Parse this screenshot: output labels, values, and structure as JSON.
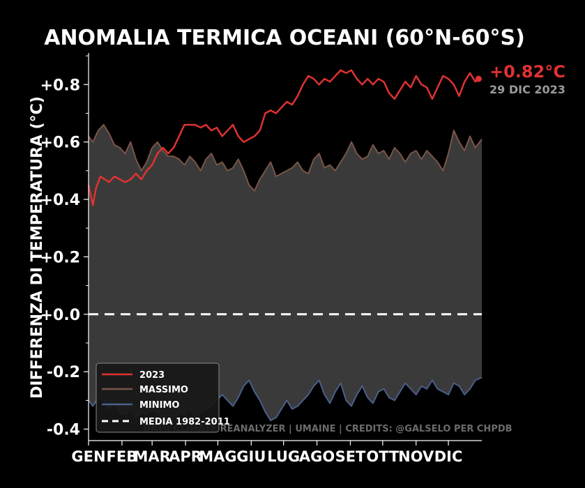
{
  "chart_data": {
    "type": "line",
    "title": "ANOMALIA TERMICA OCEANI (60°N-60°S)",
    "ylabel": "DIFFERENZA DI TEMPERATURA (°C)",
    "xlabel": "",
    "ylim": [
      -0.44,
      0.91
    ],
    "y_ticks": [
      0.8,
      0.6,
      0.4,
      0.2,
      0.0,
      -0.2,
      -0.4
    ],
    "y_tick_labels": [
      "+0.8",
      "+0.6",
      "+0.4",
      "+0.2",
      "+0.0",
      "-0.2",
      "-0.4"
    ],
    "month_labels": [
      "GEN",
      "FEB",
      "MAR",
      "APR",
      "MAG",
      "GIU",
      "LUG",
      "AGO",
      "SET",
      "OTT",
      "NOV",
      "DIC"
    ],
    "month_start_days": [
      1,
      32,
      60,
      91,
      121,
      152,
      182,
      213,
      244,
      274,
      305,
      335
    ],
    "x_range_days": [
      1,
      366
    ],
    "reference_value": 0.0,
    "latest": {
      "value_label": "+0.82°C",
      "date_label": "29 DIC 2023",
      "day": 363,
      "value": 0.82
    },
    "credits": "DATI: CLIMATE REANALYZER | UMAINE | CREDITS: @GALSELO PER CHPDB",
    "legend": {
      "position": "lower-left",
      "entries": [
        "2023",
        "MASSIMO",
        "MINIMO",
        "MEDIA 1982-2011"
      ]
    },
    "colors": {
      "y2023": "#e03232",
      "max": "#7a5548",
      "min": "#4a5f8c",
      "band": "#3a3a3a",
      "ref": "#ffffff",
      "bg": "#000000"
    },
    "series": [
      {
        "name": "2023",
        "x": [
          1,
          5,
          8,
          12,
          16,
          20,
          25,
          30,
          35,
          40,
          45,
          50,
          55,
          60,
          65,
          70,
          75,
          80,
          85,
          90,
          95,
          100,
          105,
          110,
          115,
          120,
          125,
          130,
          135,
          140,
          145,
          150,
          155,
          160,
          165,
          170,
          175,
          180,
          185,
          190,
          195,
          200,
          205,
          210,
          215,
          220,
          225,
          230,
          235,
          240,
          245,
          250,
          255,
          260,
          265,
          270,
          275,
          280,
          285,
          290,
          295,
          300,
          305,
          310,
          315,
          320,
          325,
          330,
          335,
          340,
          345,
          350,
          355,
          360,
          363
        ],
        "values": [
          0.45,
          0.38,
          0.44,
          0.48,
          0.47,
          0.46,
          0.48,
          0.47,
          0.46,
          0.47,
          0.49,
          0.47,
          0.5,
          0.52,
          0.56,
          0.58,
          0.56,
          0.58,
          0.62,
          0.66,
          0.66,
          0.66,
          0.65,
          0.66,
          0.64,
          0.65,
          0.62,
          0.64,
          0.66,
          0.62,
          0.6,
          0.61,
          0.62,
          0.64,
          0.7,
          0.71,
          0.7,
          0.72,
          0.74,
          0.73,
          0.76,
          0.8,
          0.83,
          0.82,
          0.8,
          0.82,
          0.81,
          0.83,
          0.85,
          0.84,
          0.85,
          0.82,
          0.8,
          0.82,
          0.8,
          0.82,
          0.81,
          0.77,
          0.75,
          0.78,
          0.81,
          0.79,
          0.83,
          0.8,
          0.79,
          0.75,
          0.79,
          0.83,
          0.82,
          0.8,
          0.76,
          0.81,
          0.84,
          0.81,
          0.82
        ]
      },
      {
        "name": "MASSIMO",
        "x": [
          1,
          5,
          10,
          15,
          20,
          25,
          30,
          35,
          40,
          45,
          50,
          55,
          60,
          65,
          70,
          75,
          80,
          85,
          90,
          95,
          100,
          105,
          110,
          115,
          120,
          125,
          130,
          135,
          140,
          145,
          150,
          155,
          160,
          165,
          170,
          175,
          180,
          185,
          190,
          195,
          200,
          205,
          210,
          215,
          220,
          225,
          230,
          235,
          240,
          245,
          250,
          255,
          260,
          265,
          270,
          275,
          280,
          285,
          290,
          295,
          300,
          305,
          310,
          315,
          320,
          325,
          330,
          335,
          340,
          345,
          350,
          355,
          360,
          366
        ],
        "values": [
          0.62,
          0.6,
          0.64,
          0.66,
          0.63,
          0.59,
          0.58,
          0.56,
          0.6,
          0.54,
          0.5,
          0.53,
          0.58,
          0.6,
          0.57,
          0.55,
          0.55,
          0.54,
          0.52,
          0.55,
          0.53,
          0.5,
          0.54,
          0.56,
          0.52,
          0.53,
          0.5,
          0.51,
          0.54,
          0.5,
          0.45,
          0.43,
          0.47,
          0.5,
          0.53,
          0.48,
          0.49,
          0.5,
          0.51,
          0.53,
          0.5,
          0.49,
          0.54,
          0.56,
          0.51,
          0.52,
          0.5,
          0.53,
          0.56,
          0.6,
          0.56,
          0.54,
          0.55,
          0.59,
          0.56,
          0.57,
          0.54,
          0.58,
          0.56,
          0.53,
          0.56,
          0.57,
          0.54,
          0.57,
          0.55,
          0.53,
          0.5,
          0.56,
          0.64,
          0.6,
          0.57,
          0.62,
          0.58,
          0.61
        ]
      },
      {
        "name": "MINIMO",
        "x": [
          1,
          5,
          10,
          15,
          20,
          25,
          30,
          35,
          40,
          45,
          50,
          55,
          60,
          65,
          70,
          75,
          80,
          85,
          90,
          95,
          100,
          105,
          110,
          115,
          120,
          125,
          130,
          135,
          140,
          145,
          150,
          155,
          160,
          165,
          170,
          175,
          180,
          185,
          190,
          195,
          200,
          205,
          210,
          215,
          220,
          225,
          230,
          235,
          240,
          245,
          250,
          255,
          260,
          265,
          270,
          275,
          280,
          285,
          290,
          295,
          300,
          305,
          310,
          315,
          320,
          325,
          330,
          335,
          340,
          345,
          350,
          355,
          360,
          366
        ],
        "values": [
          -0.3,
          -0.32,
          -0.29,
          -0.3,
          -0.33,
          -0.31,
          -0.34,
          -0.35,
          -0.33,
          -0.36,
          -0.34,
          -0.35,
          -0.33,
          -0.34,
          -0.36,
          -0.35,
          -0.37,
          -0.34,
          -0.35,
          -0.33,
          -0.36,
          -0.34,
          -0.33,
          -0.32,
          -0.3,
          -0.28,
          -0.3,
          -0.32,
          -0.29,
          -0.25,
          -0.23,
          -0.27,
          -0.3,
          -0.34,
          -0.37,
          -0.36,
          -0.33,
          -0.3,
          -0.33,
          -0.32,
          -0.3,
          -0.28,
          -0.25,
          -0.23,
          -0.28,
          -0.31,
          -0.27,
          -0.24,
          -0.3,
          -0.32,
          -0.28,
          -0.25,
          -0.29,
          -0.31,
          -0.27,
          -0.26,
          -0.29,
          -0.3,
          -0.27,
          -0.24,
          -0.26,
          -0.28,
          -0.25,
          -0.26,
          -0.23,
          -0.26,
          -0.27,
          -0.28,
          -0.24,
          -0.25,
          -0.28,
          -0.26,
          -0.23,
          -0.22
        ]
      }
    ]
  }
}
